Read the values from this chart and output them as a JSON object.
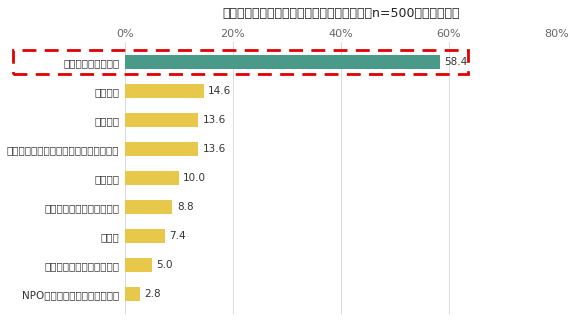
{
  "title": "副業・複業の時代に向けて行っていること（n=500、単数回答）",
  "categories": [
    "NPO団体などでのボランティア",
    "学校で専門的な知識を学ぶ",
    "習い事",
    "自分のキャリアの振り返り",
    "人脈作り",
    "現在持っているスキルのレベルを上げる",
    "情報収集",
    "資格取得",
    "特に何もしていない"
  ],
  "values": [
    2.8,
    5.0,
    7.4,
    8.8,
    10.0,
    13.6,
    13.6,
    14.6,
    58.4
  ],
  "bar_colors": [
    "#e8c84a",
    "#e8c84a",
    "#e8c84a",
    "#e8c84a",
    "#e8c84a",
    "#e8c84a",
    "#e8c84a",
    "#e8c84a",
    "#4a9a8a"
  ],
  "xlim": [
    0,
    80
  ],
  "xticks": [
    0,
    20,
    40,
    60,
    80
  ],
  "xticklabels": [
    "0%",
    "20%",
    "40%",
    "60%",
    "80%"
  ],
  "value_labels": [
    "2.8",
    "5.0",
    "7.4",
    "8.8",
    "10.0",
    "13.6",
    "13.6",
    "14.6",
    "58.4"
  ],
  "background_color": "#ffffff",
  "highlight_bar_index": 8,
  "dashed_rect_color": "#e00000",
  "bar_height": 0.5,
  "grid_color": "#cccccc",
  "label_fontsize": 7.5,
  "value_fontsize": 7.5,
  "title_fontsize": 9,
  "xtick_fontsize": 8
}
